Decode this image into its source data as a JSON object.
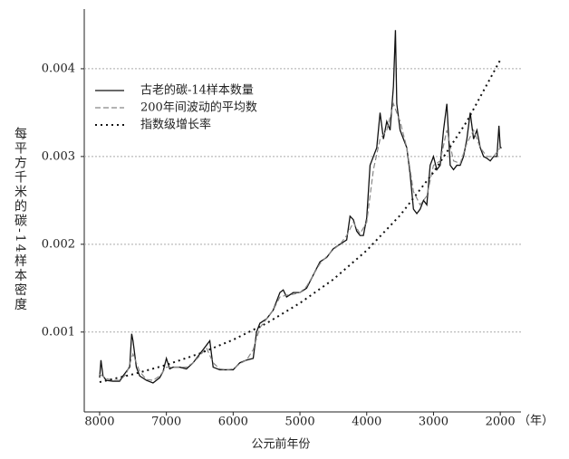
{
  "chart_data": {
    "type": "line",
    "x_label": "公元前年份",
    "x_unit": "（年）",
    "y_label": "每平方千米的碳-14样本密度",
    "xlim": [
      8230,
      1690
    ],
    "ylim": [
      9e-05,
      0.00468
    ],
    "xticks": [
      8000,
      7000,
      6000,
      5000,
      4000,
      3000,
      2000
    ],
    "yticks": [
      0.001,
      0.002,
      0.003,
      0.004
    ],
    "grid": true,
    "legend": "upper left",
    "series": [
      {
        "name": "古老的碳-14样本数量",
        "color": "#111111",
        "style": "solid",
        "x": [
          8000,
          7980,
          7950,
          7900,
          7800,
          7700,
          7650,
          7600,
          7550,
          7520,
          7500,
          7450,
          7400,
          7300,
          7200,
          7100,
          7050,
          7000,
          6950,
          6900,
          6800,
          6700,
          6600,
          6500,
          6400,
          6350,
          6300,
          6200,
          6100,
          6000,
          5900,
          5800,
          5700,
          5650,
          5600,
          5500,
          5400,
          5300,
          5250,
          5200,
          5100,
          5000,
          4900,
          4800,
          4700,
          4600,
          4500,
          4400,
          4300,
          4250,
          4200,
          4150,
          4100,
          4050,
          4000,
          3950,
          3900,
          3850,
          3800,
          3750,
          3700,
          3650,
          3600,
          3570,
          3550,
          3500,
          3450,
          3400,
          3350,
          3300,
          3250,
          3200,
          3150,
          3100,
          3050,
          3000,
          2950,
          2900,
          2850,
          2800,
          2750,
          2700,
          2650,
          2600,
          2550,
          2500,
          2450,
          2400,
          2350,
          2300,
          2250,
          2200,
          2150,
          2100,
          2050,
          2020,
          2000,
          1980
        ],
        "values": [
          0.00048,
          0.00068,
          0.0005,
          0.00045,
          0.00044,
          0.00044,
          0.0005,
          0.00055,
          0.0006,
          0.00098,
          0.0009,
          0.0006,
          0.0005,
          0.00045,
          0.00042,
          0.00048,
          0.00055,
          0.0007,
          0.00058,
          0.0006,
          0.0006,
          0.00058,
          0.00065,
          0.00075,
          0.00085,
          0.0009,
          0.0006,
          0.00057,
          0.00057,
          0.00057,
          0.00065,
          0.00068,
          0.0007,
          0.001,
          0.0011,
          0.00115,
          0.00125,
          0.00145,
          0.00148,
          0.0014,
          0.00145,
          0.00145,
          0.0015,
          0.00165,
          0.0018,
          0.00185,
          0.00195,
          0.002,
          0.00205,
          0.00232,
          0.00228,
          0.00215,
          0.0021,
          0.0021,
          0.0023,
          0.0029,
          0.003,
          0.0031,
          0.0035,
          0.0032,
          0.0034,
          0.0033,
          0.0038,
          0.00444,
          0.0036,
          0.0033,
          0.0032,
          0.0031,
          0.0028,
          0.0024,
          0.00235,
          0.0024,
          0.0025,
          0.00245,
          0.0029,
          0.003,
          0.00285,
          0.0029,
          0.0033,
          0.0036,
          0.0029,
          0.00285,
          0.0029,
          0.0029,
          0.003,
          0.0032,
          0.0035,
          0.0032,
          0.0033,
          0.0031,
          0.003,
          0.00298,
          0.00295,
          0.003,
          0.003,
          0.00335,
          0.0031,
          0.0031
        ]
      },
      {
        "name": "200年间波动的平均数",
        "color": "#888888",
        "style": "dashed",
        "x": [
          8000,
          7900,
          7800,
          7700,
          7600,
          7500,
          7400,
          7300,
          7200,
          7100,
          7000,
          6900,
          6800,
          6700,
          6600,
          6500,
          6400,
          6300,
          6200,
          6100,
          6000,
          5900,
          5800,
          5700,
          5600,
          5500,
          5400,
          5300,
          5200,
          5100,
          5000,
          4900,
          4800,
          4700,
          4600,
          4500,
          4400,
          4300,
          4200,
          4100,
          4000,
          3900,
          3800,
          3700,
          3600,
          3500,
          3400,
          3300,
          3200,
          3100,
          3000,
          2900,
          2800,
          2700,
          2600,
          2500,
          2400,
          2300,
          2200,
          2100,
          2000
        ],
        "values": [
          0.00052,
          0.00047,
          0.00045,
          0.00045,
          0.00052,
          0.00075,
          0.00055,
          0.00046,
          0.00045,
          0.0005,
          0.0006,
          0.0006,
          0.0006,
          0.0006,
          0.00065,
          0.00073,
          0.00082,
          0.00065,
          0.00058,
          0.00057,
          0.00058,
          0.00064,
          0.00068,
          0.0008,
          0.00105,
          0.00115,
          0.00125,
          0.0014,
          0.00142,
          0.00143,
          0.00145,
          0.00152,
          0.00165,
          0.00178,
          0.00186,
          0.00194,
          0.002,
          0.0021,
          0.00225,
          0.00212,
          0.00225,
          0.00285,
          0.0032,
          0.0033,
          0.0036,
          0.0034,
          0.0031,
          0.0026,
          0.00245,
          0.00255,
          0.0029,
          0.00295,
          0.0033,
          0.00295,
          0.00292,
          0.00315,
          0.0033,
          0.0031,
          0.003,
          0.003,
          0.0031
        ]
      },
      {
        "name": "指数级增长率",
        "color": "#111111",
        "style": "dotted",
        "x": [
          8000,
          7500,
          7000,
          6500,
          6000,
          5500,
          5000,
          4500,
          4000,
          3500,
          3000,
          2500,
          2000
        ],
        "values": [
          0.00043,
          0.000519,
          0.000626,
          0.000756,
          0.000912,
          0.0011,
          0.00133,
          0.0016,
          0.00193,
          0.00233,
          0.00282,
          0.0034,
          0.0041
        ]
      }
    ]
  }
}
